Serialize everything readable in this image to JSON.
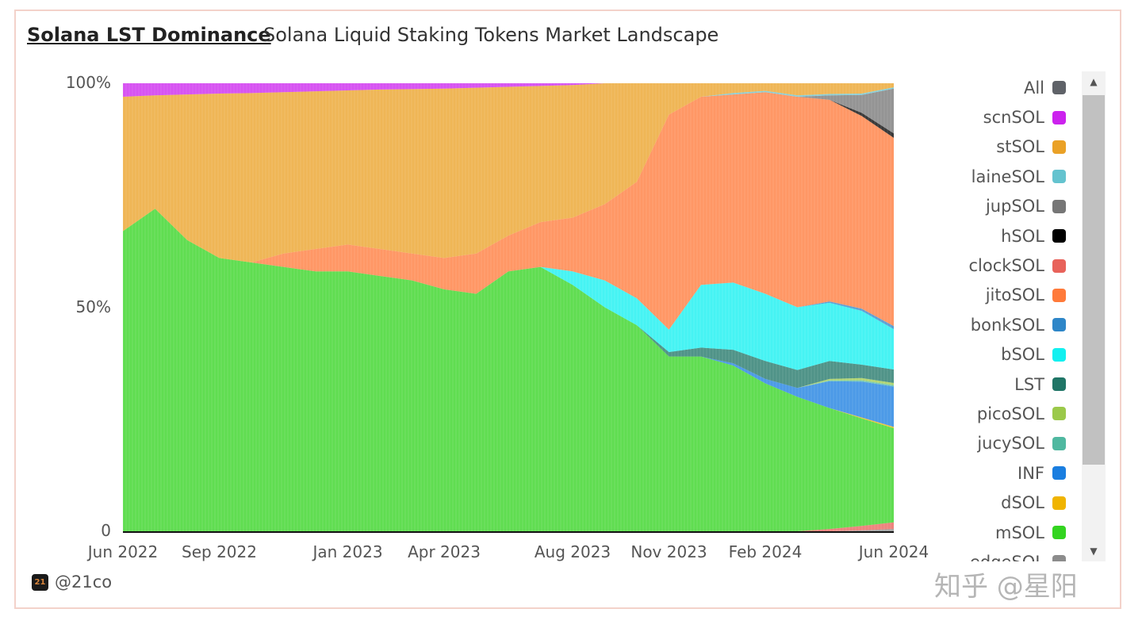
{
  "header": {
    "title": "Solana LST Dominance",
    "subtitle": "Solana Liquid Staking Tokens Market Landscape"
  },
  "footer": {
    "author": "@21co",
    "logo_text": "21"
  },
  "watermark": "知乎 @星阳",
  "legend": {
    "items": [
      {
        "label": "All",
        "color": "#5f6268"
      },
      {
        "label": "scnSOL",
        "color": "#cc22ee"
      },
      {
        "label": "stSOL",
        "color": "#eaa126"
      },
      {
        "label": "laineSOL",
        "color": "#64c3cf"
      },
      {
        "label": "jupSOL",
        "color": "#767676"
      },
      {
        "label": "hSOL",
        "color": "#000000"
      },
      {
        "label": "clockSOL",
        "color": "#e8625a"
      },
      {
        "label": "jitoSOL",
        "color": "#ff7a3a"
      },
      {
        "label": "bonkSOL",
        "color": "#2e86c8"
      },
      {
        "label": "bSOL",
        "color": "#12f0f0"
      },
      {
        "label": "LST",
        "color": "#1f7566"
      },
      {
        "label": "picoSOL",
        "color": "#9bc94a"
      },
      {
        "label": "jucySOL",
        "color": "#4fb8a0"
      },
      {
        "label": "INF",
        "color": "#1a7ee0"
      },
      {
        "label": "dSOL",
        "color": "#f0b400"
      },
      {
        "label": "mSOL",
        "color": "#33d420"
      },
      {
        "label": "edgeSOL",
        "color": "#8c8c8c"
      }
    ]
  },
  "chart_data": {
    "type": "area",
    "stacked": true,
    "normalized": true,
    "title": "Solana LST Dominance",
    "subtitle": "Solana Liquid Staking Tokens Market Landscape",
    "xlabel": "",
    "ylabel": "",
    "ylim": [
      0,
      100
    ],
    "y_ticks": [
      {
        "label": "0",
        "value": 0
      },
      {
        "label": "50%",
        "value": 50
      },
      {
        "label": "100%",
        "value": 100
      }
    ],
    "x": [
      "Jun 2022",
      "Jul 2022",
      "Aug 2022",
      "Sep 2022",
      "Oct 2022",
      "Nov 2022",
      "Dec 2022",
      "Jan 2023",
      "Feb 2023",
      "Mar 2023",
      "Apr 2023",
      "May 2023",
      "Jun 2023",
      "Jul 2023",
      "Aug 2023",
      "Sep 2023",
      "Oct 2023",
      "Nov 2023",
      "Dec 2023",
      "Jan 2024",
      "Feb 2024",
      "Mar 2024",
      "Apr 2024",
      "May 2024",
      "Jun 2024"
    ],
    "x_ticks": [
      {
        "label": "Jun 2022",
        "index": 0
      },
      {
        "label": "Sep 2022",
        "index": 3
      },
      {
        "label": "Jan 2023",
        "index": 7
      },
      {
        "label": "Apr 2023",
        "index": 10
      },
      {
        "label": "Aug 2023",
        "index": 14
      },
      {
        "label": "Nov 2023",
        "index": 17
      },
      {
        "label": "Feb 2024",
        "index": 20
      },
      {
        "label": "Jun 2024",
        "index": 24
      }
    ],
    "legend_position": "right",
    "series": [
      {
        "name": "edgeSOL",
        "values": [
          0,
          0,
          0,
          0,
          0,
          0,
          0,
          0,
          0,
          0,
          0,
          0,
          0,
          0,
          0,
          0,
          0,
          0,
          0,
          0,
          0,
          0,
          0,
          0.2,
          0.5
        ]
      },
      {
        "name": "clockSOL",
        "values": [
          0,
          0,
          0,
          0,
          0,
          0,
          0,
          0,
          0,
          0,
          0,
          0,
          0,
          0,
          0,
          0,
          0,
          0,
          0,
          0,
          0,
          0,
          0.5,
          1,
          1.5
        ]
      },
      {
        "name": "mSOL",
        "values": [
          67,
          72,
          65,
          61,
          60,
          59,
          58,
          58,
          57,
          56,
          54,
          53,
          58,
          59,
          55,
          50,
          46,
          39,
          39,
          37,
          33,
          30,
          27,
          24,
          21
        ]
      },
      {
        "name": "dSOL",
        "values": [
          0,
          0,
          0,
          0,
          0,
          0,
          0,
          0,
          0,
          0,
          0,
          0,
          0,
          0,
          0,
          0,
          0,
          0,
          0,
          0,
          0,
          0,
          0,
          0.2,
          0.3
        ]
      },
      {
        "name": "INF",
        "values": [
          0,
          0,
          0,
          0,
          0,
          0,
          0,
          0,
          0,
          0,
          0,
          0,
          0,
          0,
          0,
          0,
          0,
          0,
          0,
          0.5,
          1,
          2,
          6,
          8,
          9
        ]
      },
      {
        "name": "jucySOL",
        "values": [
          0,
          0,
          0,
          0,
          0,
          0,
          0,
          0,
          0,
          0,
          0,
          0,
          0,
          0,
          0,
          0,
          0,
          0,
          0,
          0,
          0,
          0,
          0.2,
          0.3,
          0.3
        ]
      },
      {
        "name": "picoSOL",
        "values": [
          0,
          0,
          0,
          0,
          0,
          0,
          0,
          0,
          0,
          0,
          0,
          0,
          0,
          0,
          0,
          0,
          0,
          0,
          0,
          0,
          0,
          0,
          0.3,
          0.5,
          0.5
        ]
      },
      {
        "name": "LST",
        "values": [
          0,
          0,
          0,
          0,
          0,
          0,
          0,
          0,
          0,
          0,
          0,
          0,
          0,
          0,
          0,
          0,
          0,
          1,
          2,
          3,
          4,
          4,
          4,
          3,
          3
        ]
      },
      {
        "name": "bSOL",
        "values": [
          0,
          0,
          0,
          0,
          0,
          0,
          0,
          0,
          0,
          0,
          0,
          0,
          0,
          0,
          3,
          6,
          6,
          5,
          14,
          15,
          15,
          14,
          13,
          12,
          9
        ]
      },
      {
        "name": "bonkSOL",
        "values": [
          0,
          0,
          0,
          0,
          0,
          0,
          0,
          0,
          0,
          0,
          0,
          0,
          0,
          0,
          0,
          0,
          0,
          0,
          0,
          0,
          0,
          0,
          0.3,
          0.5,
          0.7
        ]
      },
      {
        "name": "jitoSOL",
        "values": [
          0,
          0,
          0,
          0,
          0,
          3,
          5,
          6,
          6,
          6,
          7,
          9,
          8,
          10,
          12,
          17,
          26,
          48,
          42,
          42,
          45,
          47,
          45,
          43,
          42
        ]
      },
      {
        "name": "hSOL",
        "values": [
          0,
          0,
          0,
          0,
          0,
          0,
          0,
          0,
          0,
          0,
          0,
          0,
          0,
          0,
          0,
          0,
          0,
          0,
          0,
          0,
          0,
          0,
          0,
          0.7,
          1
        ]
      },
      {
        "name": "jupSOL",
        "values": [
          0,
          0,
          0,
          0,
          0,
          0,
          0,
          0,
          0,
          0,
          0,
          0,
          0,
          0,
          0,
          0,
          0,
          0,
          0,
          0,
          0,
          0,
          1,
          4,
          10
        ]
      },
      {
        "name": "laineSOL",
        "values": [
          0,
          0,
          0,
          0,
          0,
          0,
          0,
          0,
          0,
          0,
          0,
          0,
          0,
          0,
          0,
          0,
          0,
          0,
          0,
          0.3,
          0.3,
          0.3,
          0.3,
          0.3,
          0.3
        ]
      },
      {
        "name": "stSOL",
        "values": "remainder"
      },
      {
        "name": "scnSOL",
        "values": [
          3,
          2.7,
          2.5,
          2.3,
          2.2,
          2,
          1.8,
          1.6,
          1.4,
          1.3,
          1.2,
          1,
          0.8,
          0.6,
          0.4,
          0,
          0,
          0,
          0,
          0,
          0,
          0,
          0,
          0,
          0
        ]
      }
    ]
  }
}
